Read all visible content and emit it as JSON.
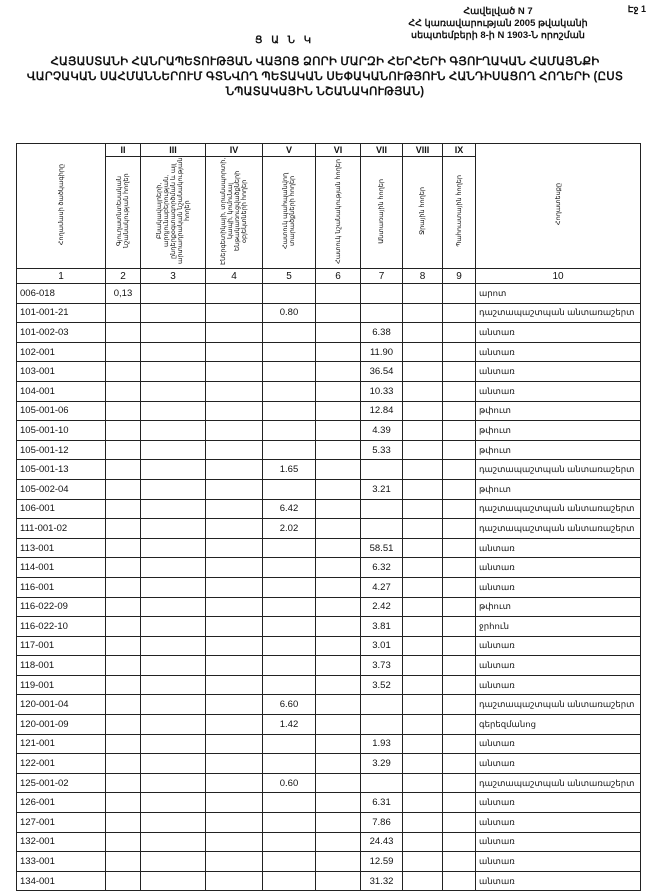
{
  "page_marker": "Էջ 1",
  "annex": {
    "line1": "Հավելված N 7",
    "line2": "ՀՀ կառավարության 2005 թվականի",
    "line3": "սեպտեմբերի 8-ի N 1903-Ն որոշման"
  },
  "list_label": "Ց Ա Ն Կ",
  "title": "ՀԱՅԱՍՏԱՆԻ ՀԱՆՐԱՊԵՏՈՒԹՅԱՆ ՎԱՅՈՑ ՁՈՐԻ ՄԱՐԶԻ ՀԵՐՀԵՐԻ ԳՅՈՒՂԱԿԱՆ ՀԱՄԱՅՆՔԻ ՎԱՐՉԱԿԱՆ ՍԱՀՄԱՆՆԵՐՈՒՄ ԳՏՆՎՈՂ ՊԵՏԱԿԱՆ ՍԵՓԱԿԱՆՈՒԹՅՈՒՆ ՀԱՆԴԻՍԱՑՈՂ ՀՈՂԵՐԻ (ԸՍՏ ՆՊԱՏԱԿԱՅԻՆ ՆՇԱՆԱԿՈՒԹՅԱՆ)",
  "table": {
    "roman": [
      "II",
      "III",
      "IV",
      "V",
      "VI",
      "VII",
      "VIII",
      "IX"
    ],
    "headers": [
      "Հողամասի ծածկագիրը",
      "Գյուղատնտեսական նշանակության հողեր",
      "Բնակավայրերի, արդյունաբերության, ընդերքօգտագործման և այլ արտադրական նշանակության հողեր",
      "Էներգետիկայի, տրանսպորտի, կապի, կոմունալ ենթակառուցվածքների օբյեկտների հողեր",
      "Հատուկ պահպանվող տարածքների հողեր",
      "Հատուկ նշանակության հողեր",
      "Անտառային հողեր",
      "Ջրային հողեր",
      "Պահուստային հողեր",
      "Հողատեսքը"
    ],
    "numbers": [
      "1",
      "2",
      "3",
      "4",
      "5",
      "6",
      "7",
      "8",
      "9",
      "10"
    ],
    "rows": [
      {
        "code": "006-018",
        "c2": "0,13",
        "c5": "",
        "c7": "",
        "type": "արոտ"
      },
      {
        "code": "101-001-21",
        "c2": "",
        "c5": "0.80",
        "c7": "",
        "type": "դաշտապաշտպան անտառաշերտ"
      },
      {
        "code": "101-002-03",
        "c2": "",
        "c5": "",
        "c7": "6.38",
        "type": "անտառ"
      },
      {
        "code": "102-001",
        "c2": "",
        "c5": "",
        "c7": "11.90",
        "type": "անտառ"
      },
      {
        "code": "103-001",
        "c2": "",
        "c5": "",
        "c7": "36.54",
        "type": "անտառ"
      },
      {
        "code": "104-001",
        "c2": "",
        "c5": "",
        "c7": "10.33",
        "type": "անտառ"
      },
      {
        "code": "105-001-06",
        "c2": "",
        "c5": "",
        "c7": "12.84",
        "type": "թփուտ"
      },
      {
        "code": "105-001-10",
        "c2": "",
        "c5": "",
        "c7": "4.39",
        "type": "թփուտ"
      },
      {
        "code": "105-001-12",
        "c2": "",
        "c5": "",
        "c7": "5.33",
        "type": "թփուտ"
      },
      {
        "code": "105-001-13",
        "c2": "",
        "c5": "1.65",
        "c7": "",
        "type": "դաշտապաշտպան անտառաշերտ"
      },
      {
        "code": "105-002-04",
        "c2": "",
        "c5": "",
        "c7": "3.21",
        "type": "թփուտ"
      },
      {
        "code": "106-001",
        "c2": "",
        "c5": "6.42",
        "c7": "",
        "type": "դաշտապաշտպան անտառաշերտ"
      },
      {
        "code": "111-001-02",
        "c2": "",
        "c5": "2.02",
        "c7": "",
        "type": "դաշտապաշտպան անտառաշերտ"
      },
      {
        "code": "113-001",
        "c2": "",
        "c5": "",
        "c7": "58.51",
        "type": "անտառ"
      },
      {
        "code": "114-001",
        "c2": "",
        "c5": "",
        "c7": "6.32",
        "type": "անտառ"
      },
      {
        "code": "116-001",
        "c2": "",
        "c5": "",
        "c7": "4.27",
        "type": "անտառ"
      },
      {
        "code": "116-022-09",
        "c2": "",
        "c5": "",
        "c7": "2.42",
        "type": "թփուտ"
      },
      {
        "code": "116-022-10",
        "c2": "",
        "c5": "",
        "c7": "3.81",
        "type": "ջրհուն"
      },
      {
        "code": "117-001",
        "c2": "",
        "c5": "",
        "c7": "3.01",
        "type": "անտառ"
      },
      {
        "code": "118-001",
        "c2": "",
        "c5": "",
        "c7": "3.73",
        "type": "անտառ"
      },
      {
        "code": "119-001",
        "c2": "",
        "c5": "",
        "c7": "3.52",
        "type": "անտառ"
      },
      {
        "code": "120-001-04",
        "c2": "",
        "c5": "6.60",
        "c7": "",
        "type": "դաշտապաշտպան անտառաշերտ"
      },
      {
        "code": "120-001-09",
        "c2": "",
        "c5": "1.42",
        "c7": "",
        "type": "գերեզմանոց"
      },
      {
        "code": "121-001",
        "c2": "",
        "c5": "",
        "c7": "1.93",
        "type": "անտառ"
      },
      {
        "code": "122-001",
        "c2": "",
        "c5": "",
        "c7": "3.29",
        "type": "անտառ"
      },
      {
        "code": "125-001-02",
        "c2": "",
        "c5": "0.60",
        "c7": "",
        "type": "դաշտապաշտպան անտառաշերտ"
      },
      {
        "code": "126-001",
        "c2": "",
        "c5": "",
        "c7": "6.31",
        "type": "անտառ"
      },
      {
        "code": "127-001",
        "c2": "",
        "c5": "",
        "c7": "7.86",
        "type": "անտառ"
      },
      {
        "code": "132-001",
        "c2": "",
        "c5": "",
        "c7": "24.43",
        "type": "անտառ"
      },
      {
        "code": "133-001",
        "c2": "",
        "c5": "",
        "c7": "12.59",
        "type": "անտառ"
      },
      {
        "code": "134-001",
        "c2": "",
        "c5": "",
        "c7": "31.32",
        "type": "անտառ"
      }
    ]
  }
}
